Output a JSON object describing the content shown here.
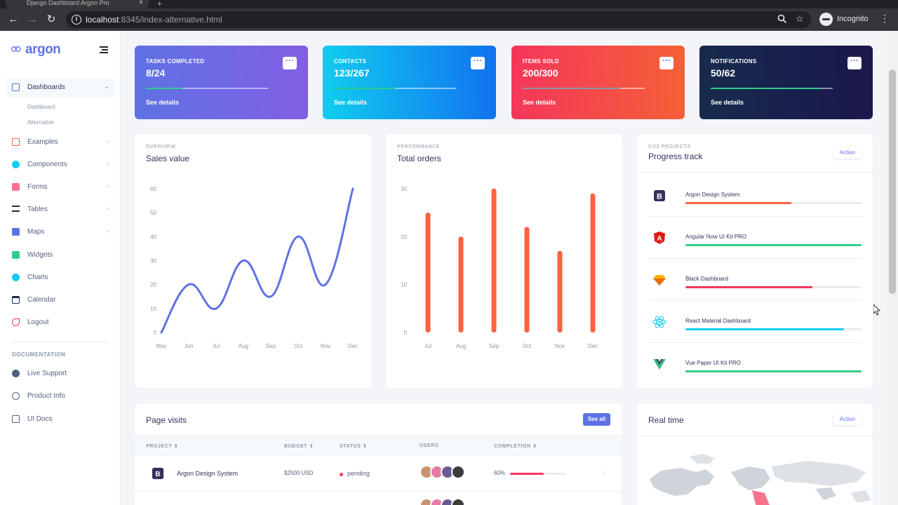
{
  "browser": {
    "tab_title": "Django Dashboard Argon Pro",
    "tab_close": "×",
    "new_tab": "+",
    "url_host": "localhost",
    "url_rest": ":8345/index-alternative.html",
    "incognito_label": "Incognito"
  },
  "sidebar": {
    "brand": "argon",
    "items": [
      {
        "label": "Dashboards",
        "icon": "shop-icon",
        "color": "#5e72e4",
        "caret": "⌄"
      },
      {
        "label": "Examples",
        "icon": "ungroup-icon",
        "color": "#fb6340",
        "caret": "›"
      },
      {
        "label": "Components",
        "icon": "ui-icon",
        "color": "#11cdef",
        "caret": "›"
      },
      {
        "label": "Forms",
        "icon": "single-copy-icon",
        "color": "#f5365c",
        "caret": "›"
      },
      {
        "label": "Tables",
        "icon": "align-left-icon",
        "color": "#172b4d",
        "caret": "›"
      },
      {
        "label": "Maps",
        "icon": "map-icon",
        "color": "#5e72e4",
        "caret": "›"
      },
      {
        "label": "Widgets",
        "icon": "archive-icon",
        "color": "#2dce89",
        "caret": ""
      },
      {
        "label": "Charts",
        "icon": "chart-pie-icon",
        "color": "#11cdef",
        "caret": ""
      },
      {
        "label": "Calendar",
        "icon": "calendar-icon",
        "color": "#172b4d",
        "caret": ""
      },
      {
        "label": "Logout",
        "icon": "logout-icon",
        "color": "#f5365c",
        "caret": ""
      }
    ],
    "sub_items": [
      "Dashboard",
      "Alternative"
    ],
    "doc_heading": "DOCUMENTATION",
    "doc_items": [
      {
        "label": "Live Support",
        "icon": "support-icon"
      },
      {
        "label": "Product Info",
        "icon": "product-icon"
      },
      {
        "label": "UI Docs",
        "icon": "docs-icon"
      }
    ]
  },
  "stats": [
    {
      "title": "TASKS COMPLETED",
      "value": "8/24",
      "link": "See details",
      "progress": 0.3,
      "fill": "#2dce89",
      "bg": "linear-gradient(87deg,#5e72e4,#825ee4)"
    },
    {
      "title": "CONTACTS",
      "value": "123/267",
      "link": "See details",
      "progress": 0.5,
      "fill": "#2dce89",
      "bg": "linear-gradient(87deg,#11cdef,#1171ef)"
    },
    {
      "title": "ITEMS SOLD",
      "value": "200/300",
      "link": "See details",
      "progress": 0.8,
      "fill": "#8898aa",
      "bg": "linear-gradient(87deg,#f5365c,#f56036)"
    },
    {
      "title": "NOTIFICATIONS",
      "value": "50/62",
      "link": "See details",
      "progress": 0.9,
      "fill": "#2dce89",
      "bg": "linear-gradient(87deg,#172b4d,#1a174d)"
    }
  ],
  "stat_menu": "···",
  "sales": {
    "kicker": "OVERVIEW",
    "title": "Sales value"
  },
  "orders": {
    "kicker": "PERFORMANCE",
    "title": "Total orders"
  },
  "chart_data": [
    {
      "type": "line",
      "title": "Sales value",
      "categories": [
        "May",
        "Jun",
        "Jul",
        "Aug",
        "Sep",
        "Oct",
        "Nov",
        "Dec"
      ],
      "values": [
        0,
        20,
        10,
        30,
        15,
        40,
        20,
        60
      ],
      "yticks": [
        0,
        10,
        20,
        30,
        40,
        50,
        60
      ],
      "ylim": [
        0,
        60
      ],
      "color": "#5e72e4",
      "grid": false
    },
    {
      "type": "bar",
      "title": "Total orders",
      "categories": [
        "Jul",
        "Aug",
        "Sep",
        "Oct",
        "Nov",
        "Dec"
      ],
      "values": [
        25,
        20,
        30,
        22,
        17,
        29
      ],
      "yticks": [
        0,
        10,
        20,
        30
      ],
      "ylim": [
        0,
        30
      ],
      "color": "#fb6340",
      "grid": false
    }
  ],
  "progress_track": {
    "kicker": "5/23 PROJECTS",
    "title": "Progress track",
    "action": "Action",
    "items": [
      {
        "label": "Argon Design System",
        "logo": "bootstrap-logo-icon",
        "progress": 0.6,
        "color": "#fb6340"
      },
      {
        "label": "Angular Now UI Kit PRO",
        "logo": "angular-logo-icon",
        "progress": 1.0,
        "color": "#2dce89"
      },
      {
        "label": "Black Dashboard",
        "logo": "sketch-logo-icon",
        "progress": 0.72,
        "color": "#f5365c"
      },
      {
        "label": "React Material Dashboard",
        "logo": "react-logo-icon",
        "progress": 0.9,
        "color": "#11cdef"
      },
      {
        "label": "Vue Paper UI Kit PRO",
        "logo": "vue-logo-icon",
        "progress": 1.0,
        "color": "#2dce89"
      }
    ]
  },
  "page_visits": {
    "title": "Page visits",
    "see_all": "See all",
    "headers": [
      "PROJECT ⇕",
      "BUDGET ⇕",
      "STATUS ⇕",
      "USERS",
      "COMPLETION ⇕"
    ],
    "rows": [
      {
        "project": "Argon Design System",
        "budget": "$2500 USD",
        "status": "pending",
        "completion": "60%",
        "progress": 0.6
      }
    ],
    "row_menu": "⋮"
  },
  "realtime": {
    "title": "Real time",
    "action": "Action"
  }
}
